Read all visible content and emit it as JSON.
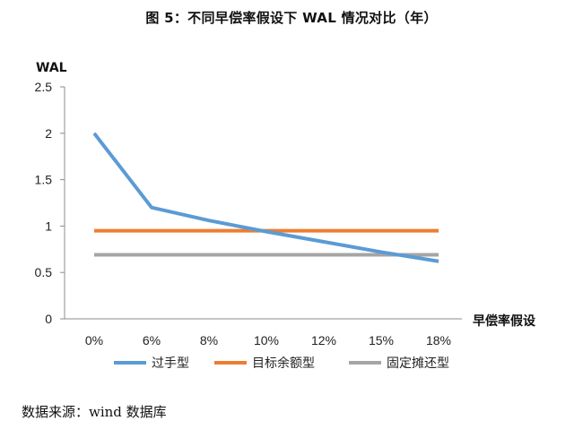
{
  "title": "图 5：不同早偿率假设下 WAL 情况对比（年）",
  "source": "数据来源：wind 数据库",
  "chart_data": {
    "type": "line",
    "title": "图 5：不同早偿率假设下 WAL 情况对比（年）",
    "xlabel": "早偿率假设",
    "ylabel": "WAL",
    "categories": [
      "0%",
      "6%",
      "8%",
      "10%",
      "12%",
      "15%",
      "18%"
    ],
    "ylim": [
      0,
      2.5
    ],
    "yticks": [
      0,
      0.5,
      1,
      1.5,
      2,
      2.5
    ],
    "ytick_labels": [
      "0",
      "0.5",
      "1",
      "1.5",
      "2",
      "2.5"
    ],
    "grid": false,
    "legend_position": "bottom",
    "series": [
      {
        "name": "过手型",
        "color": "#5B9BD5",
        "values": [
          2.0,
          1.2,
          1.06,
          0.94,
          0.83,
          0.72,
          0.62
        ]
      },
      {
        "name": "目标余额型",
        "color": "#ED7D31",
        "values": [
          0.95,
          0.95,
          0.95,
          0.95,
          0.95,
          0.95,
          0.95
        ]
      },
      {
        "name": "固定摊还型",
        "color": "#A5A5A5",
        "values": [
          0.69,
          0.69,
          0.69,
          0.69,
          0.69,
          0.69,
          0.69
        ]
      }
    ]
  }
}
